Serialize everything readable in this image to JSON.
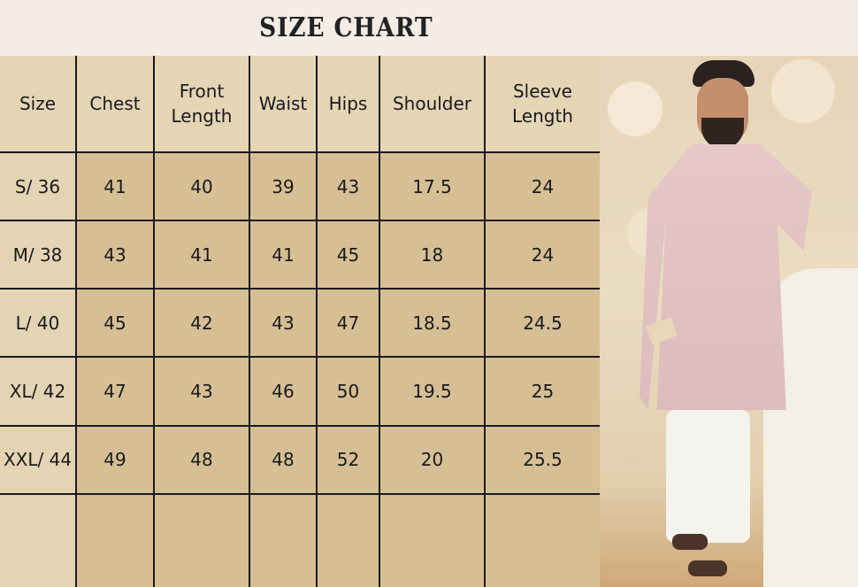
{
  "title": "SIZE CHART",
  "table": {
    "headers": [
      "Size",
      "Chest",
      "Front\nLength",
      "Waist",
      "Hips",
      "Shoulder",
      "Sleeve\nLength"
    ],
    "rows": [
      [
        "S/ 36",
        "41",
        "40",
        "39",
        "43",
        "17.5",
        "24"
      ],
      [
        "M/ 38",
        "43",
        "41",
        "41",
        "45",
        "18",
        "24"
      ],
      [
        "L/ 40",
        "45",
        "42",
        "43",
        "47",
        "18.5",
        "24.5"
      ],
      [
        "XL/ 42",
        "47",
        "43",
        "46",
        "50",
        "19.5",
        "25"
      ],
      [
        "XXL/ 44",
        "49",
        "48",
        "48",
        "52",
        "20",
        "25.5"
      ],
      [
        "",
        "",
        "",
        "",
        "",
        "",
        ""
      ]
    ]
  },
  "colors": {
    "header_bg": "#e4d5b5",
    "cell_bg": "#d6bf94",
    "title_bg": "#f4ede6",
    "grid": "#1a1a1a"
  }
}
